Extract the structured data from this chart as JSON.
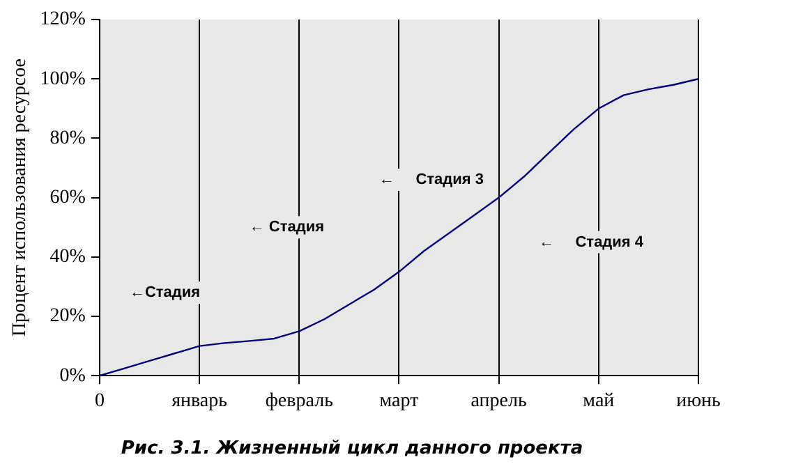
{
  "chart_data": {
    "type": "line",
    "title": "Рис. 3.1. Жизненный цикл данного проекта",
    "ylabel": "Процент использования ресурсое",
    "categories": [
      "0",
      null,
      null,
      null,
      "январь",
      null,
      null,
      null,
      "февраль",
      null,
      null,
      null,
      "март",
      null,
      null,
      null,
      "апрель",
      null,
      null,
      null,
      "май",
      null,
      null,
      null,
      "июнь"
    ],
    "series": [
      {
        "color": "#000080",
        "values": [
          0,
          2.5,
          5,
          7.5,
          10,
          11,
          11.7,
          12.5,
          15,
          19,
          24,
          29,
          35,
          42,
          48,
          54,
          60,
          67,
          75,
          83,
          90,
          94.5,
          96.5,
          98,
          100
        ]
      }
    ],
    "ylim": [
      0,
      120
    ],
    "yticks": [
      {
        "value": 0,
        "label": "0%"
      },
      {
        "value": 20,
        "label": "20%"
      },
      {
        "value": 40,
        "label": "40%"
      },
      {
        "value": 60,
        "label": "60%"
      },
      {
        "value": 80,
        "label": "80%"
      },
      {
        "value": 100,
        "label": "100%"
      },
      {
        "value": 120,
        "label": "120%"
      }
    ],
    "annotations": [
      "←Стадия",
      "← Стадия",
      "←     Стадия 3",
      "←     Стадия 4"
    ],
    "grid": "x",
    "legend": false,
    "marker": "none",
    "line_style": "solid"
  }
}
